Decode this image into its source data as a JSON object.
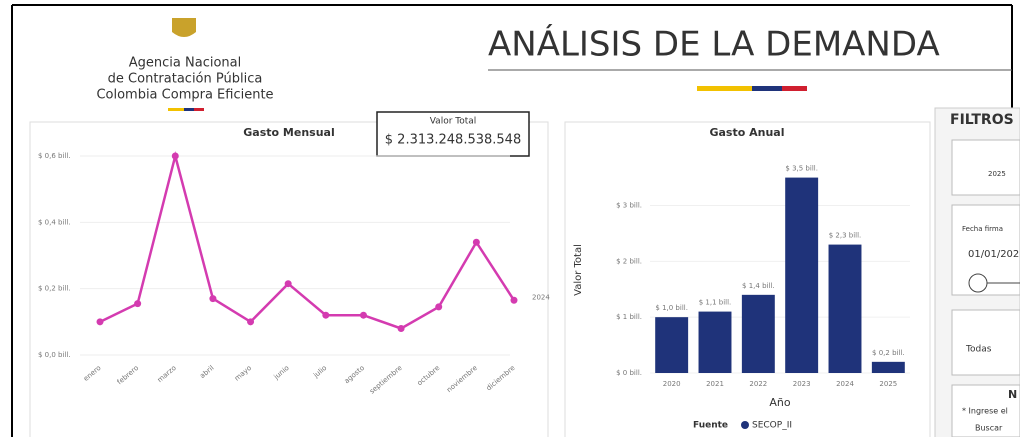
{
  "header": {
    "logo_lines": [
      "Agencia Nacional",
      "de Contratación Pública",
      "Colombia Compra Eficiente"
    ],
    "title": "ANÁLISIS DE LA DEMANDA"
  },
  "card": {
    "label": "Valor Total",
    "value": "$ 2.313.248.538.548"
  },
  "filters": {
    "title": "FILTROS",
    "year": "2025",
    "date_label": "Fecha firma",
    "date_value": "01/01/202",
    "select": "Todas",
    "section": "N",
    "hint": "* Ingrese el",
    "search": "Buscar"
  },
  "chart_data": [
    {
      "type": "line",
      "title": "Gasto Mensual",
      "categories": [
        "enero",
        "febrero",
        "marzo",
        "abril",
        "mayo",
        "junio",
        "julio",
        "agosto",
        "septiembre",
        "octubre",
        "noviembre",
        "diciembre"
      ],
      "series": [
        {
          "name": "2024",
          "color": "#d43bb0",
          "values": [
            0.1,
            0.155,
            0.6,
            0.17,
            0.1,
            0.215,
            0.12,
            0.12,
            0.08,
            0.145,
            0.34,
            0.165
          ]
        }
      ],
      "ylim": [
        0,
        0.6
      ],
      "yticks": [
        {
          "value": 0,
          "label": "$ 0,0 bill."
        },
        {
          "value": 0.2,
          "label": "$ 0,2 bill."
        },
        {
          "value": 0.4,
          "label": "$ 0,4 bill."
        },
        {
          "value": 0.6,
          "label": "$ 0,6 bill."
        }
      ]
    },
    {
      "type": "bar",
      "title": "Gasto Anual",
      "y_label": "Valor Total",
      "x_label": "Año",
      "legend_title": "Fuente",
      "categories": [
        "2020",
        "2021",
        "2022",
        "2023",
        "2024",
        "2025"
      ],
      "series": [
        {
          "name": "SECOP_II",
          "color": "#1f337a",
          "values": [
            1.0,
            1.1,
            1.4,
            3.5,
            2.3,
            0.2
          ],
          "value_labels": [
            "$ 1,0 bill.",
            "$ 1,1 bill.",
            "$ 1,4 bill.",
            "$ 3,5 bill.",
            "$ 2,3 bill.",
            "$ 0,2 bill."
          ]
        }
      ],
      "ylim": [
        0,
        3.6
      ],
      "yticks": [
        {
          "value": 0,
          "label": "$ 0 bill."
        },
        {
          "value": 1,
          "label": "$ 1 bill."
        },
        {
          "value": 2,
          "label": "$ 2 bill."
        },
        {
          "value": 3,
          "label": "$ 3 bill."
        }
      ]
    }
  ]
}
